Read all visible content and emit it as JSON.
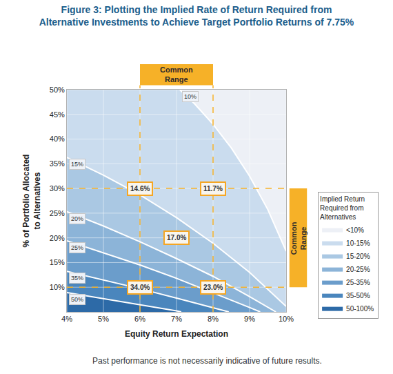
{
  "chart_data": {
    "type": "area",
    "title": [
      "Figure 3: Plotting the Implied Rate of Return Required from",
      "Alternative Investments to Achieve Target Portfolio Returns of 7.75%"
    ],
    "x_label": "Equity Return Expectation",
    "y_label": [
      "% of Portfolio Allocated",
      "to Alternatives"
    ],
    "legend_title": [
      "Implied Return",
      "Required from",
      "Alternatives"
    ],
    "note": "Past performance is not necessarily indicative of future results.",
    "xlim": [
      4,
      10
    ],
    "xticks": [
      {
        "value": 4,
        "label": "4%"
      },
      {
        "value": 5,
        "label": "5%"
      },
      {
        "value": 6,
        "label": "6%"
      },
      {
        "value": 7,
        "label": "7%"
      },
      {
        "value": 8,
        "label": "8%"
      },
      {
        "value": 9,
        "label": "9%"
      },
      {
        "value": 10,
        "label": "10%"
      }
    ],
    "ylim": [
      5,
      50
    ],
    "yticks": [
      {
        "value": 10,
        "label": "10%"
      },
      {
        "value": 15,
        "label": "15%"
      },
      {
        "value": 20,
        "label": "20%"
      },
      {
        "value": 25,
        "label": "25%"
      },
      {
        "value": 30,
        "label": "30%"
      },
      {
        "value": 35,
        "label": "35%"
      },
      {
        "value": 40,
        "label": "40%"
      },
      {
        "value": 45,
        "label": "45%"
      },
      {
        "value": 50,
        "label": "50%"
      }
    ],
    "grid": true,
    "legend": "right",
    "data_labels": true,
    "series": [
      {
        "name": "50-100%",
        "color": "#2d6aa7"
      },
      {
        "name": "35-50%",
        "color": "#4a86bd",
        "label": "50%",
        "x": [
          4,
          5,
          6,
          7,
          7.13
        ],
        "y": [
          8.9,
          7.7,
          6.5,
          5.2,
          5
        ]
      },
      {
        "name": "25-35%",
        "color": "#6b9dcb",
        "label": "35%",
        "x": [
          4,
          5,
          6,
          7,
          8,
          8.43
        ],
        "y": [
          13.2,
          11.5,
          9.7,
          7.8,
          5.9,
          5
        ]
      },
      {
        "name": "20-25%",
        "color": "#8cb4d8",
        "label": "25%",
        "x": [
          4,
          5,
          6,
          7,
          8,
          9,
          9.29
        ],
        "y": [
          19.4,
          17.0,
          14.5,
          11.8,
          8.9,
          5.9,
          5
        ]
      },
      {
        "name": "15-20%",
        "color": "#aac8e3",
        "label": "20%",
        "x": [
          4,
          5,
          6,
          7,
          8,
          9,
          9.72
        ],
        "y": [
          25.3,
          22.4,
          19.2,
          15.8,
          12.2,
          8.1,
          5
        ]
      },
      {
        "name": "10-15%",
        "color": "#cadcee",
        "label": "15%",
        "x": [
          4,
          5,
          6,
          7,
          8,
          9,
          10
        ],
        "y": [
          36.3,
          32.7,
          28.7,
          24.1,
          18.9,
          13.0,
          6.1
        ]
      },
      {
        "name": "<10%",
        "color": "#edf0f6",
        "label": "10%",
        "x": [
          7.09,
          7.5,
          8,
          8.5,
          9,
          9.5,
          10
        ],
        "y": [
          50,
          47.1,
          43.0,
          38.2,
          32.5,
          25.7,
          17.3
        ]
      }
    ],
    "points": {
      "x": [
        6,
        8,
        7,
        6,
        8
      ],
      "y": [
        30,
        30,
        20,
        10,
        10
      ],
      "values": [
        14.6,
        11.7,
        17.0,
        34.0,
        23.0
      ],
      "value_labels": [
        "14.6%",
        "11.7%",
        "17.0%",
        "34.0%",
        "23.0%"
      ]
    },
    "common_range": {
      "label": [
        "Common",
        "Range"
      ],
      "x": [
        6,
        8
      ],
      "y": [
        10,
        30
      ]
    }
  }
}
